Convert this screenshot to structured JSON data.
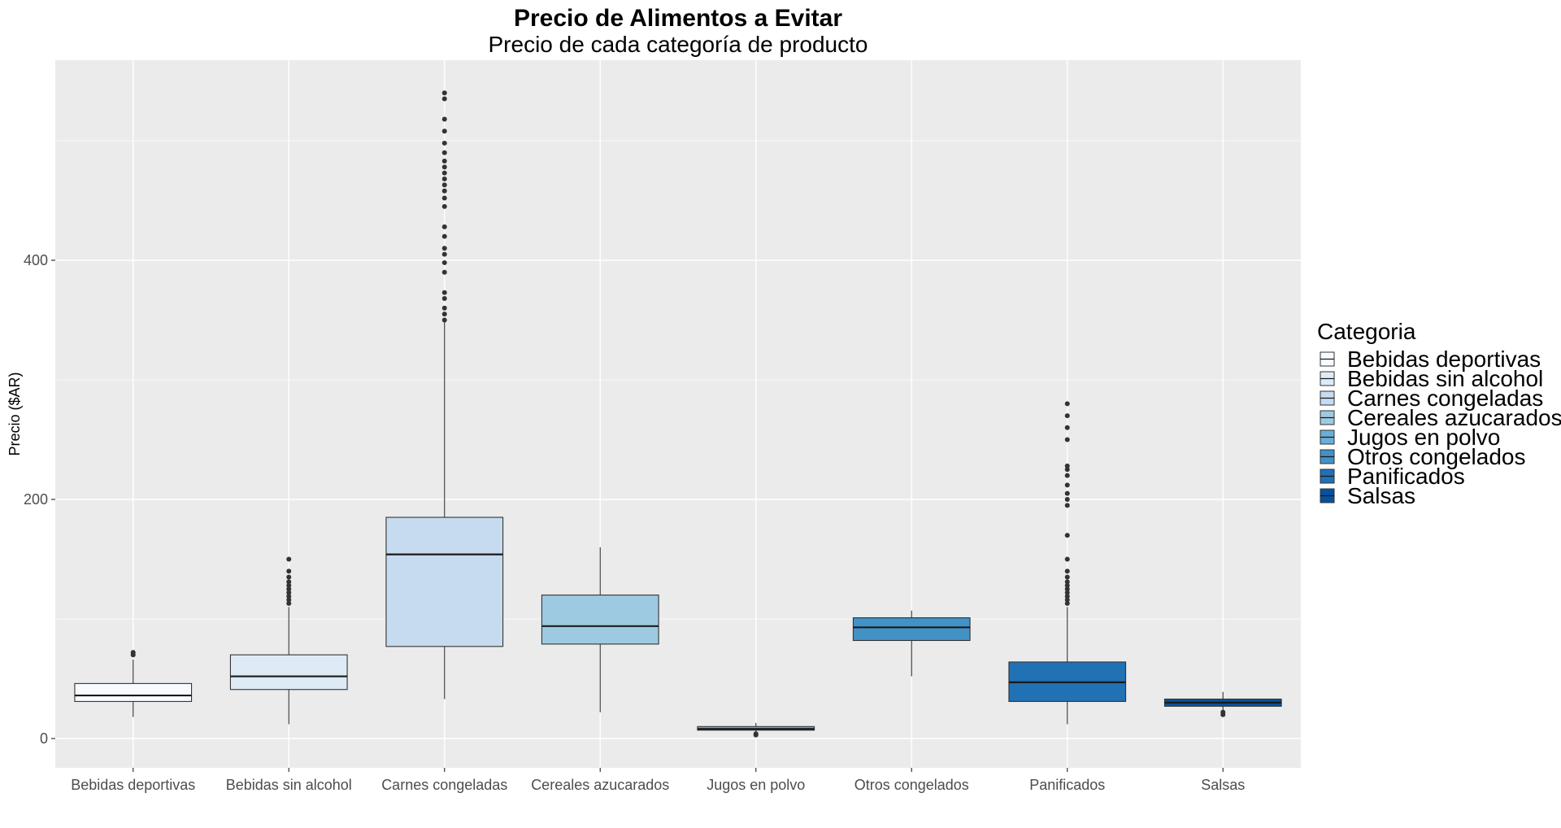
{
  "chart_data": {
    "type": "boxplot",
    "title": "Precio de Alimentos a Evitar",
    "subtitle": "Precio de cada categoría de producto",
    "xlabel": "",
    "ylabel": "Precio ($AR)",
    "ylim": [
      -45,
      570
    ],
    "yticks": [
      0,
      200,
      400
    ],
    "grid": true,
    "legend": {
      "title": "Categoria",
      "position": "right"
    },
    "categories": [
      "Bebidas deportivas",
      "Bebidas sin alcohol",
      "Carnes congeladas",
      "Cereales azucarados",
      "Jugos en polvo",
      "Otros congelados",
      "Panificados",
      "Salsas"
    ],
    "colors": [
      "#F7FBFF",
      "#DEEBF7",
      "#C6DBEF",
      "#9ECAE1",
      "#6BAED6",
      "#4292C6",
      "#2171B5",
      "#08519C"
    ],
    "boxes": [
      {
        "name": "Bebidas deportivas",
        "min": 18,
        "q1": 31,
        "median": 36,
        "q3": 46,
        "max": 66,
        "outliers": [
          70,
          72
        ]
      },
      {
        "name": "Bebidas sin alcohol",
        "min": 12,
        "q1": 41,
        "median": 52,
        "q3": 70,
        "max": 110,
        "outliers": [
          113,
          116,
          119,
          122,
          125,
          128,
          131,
          135,
          140,
          150
        ]
      },
      {
        "name": "Carnes congeladas",
        "min": 33,
        "q1": 77,
        "median": 154,
        "q3": 185,
        "max": 348,
        "outliers": [
          350,
          355,
          360,
          368,
          373,
          390,
          398,
          405,
          410,
          420,
          428,
          445,
          452,
          458,
          463,
          468,
          473,
          478,
          483,
          490,
          498,
          508,
          518,
          535,
          540
        ]
      },
      {
        "name": "Cereales azucarados",
        "min": 22,
        "q1": 79,
        "median": 94,
        "q3": 120,
        "max": 160,
        "outliers": []
      },
      {
        "name": "Jugos en polvo",
        "min": 4,
        "q1": 7,
        "median": 8,
        "q3": 10,
        "max": 13,
        "outliers": [
          3,
          4
        ]
      },
      {
        "name": "Otros congelados",
        "min": 52,
        "q1": 82,
        "median": 93,
        "q3": 101,
        "max": 107,
        "outliers": []
      },
      {
        "name": "Panificados",
        "min": 12,
        "q1": 31,
        "median": 47,
        "q3": 64,
        "max": 110,
        "outliers": [
          113,
          116,
          119,
          122,
          125,
          128,
          131,
          135,
          140,
          150,
          170,
          195,
          200,
          205,
          212,
          220,
          225,
          228,
          250,
          260,
          270,
          280
        ]
      },
      {
        "name": "Salsas",
        "min": 23,
        "q1": 27,
        "median": 30,
        "q3": 33,
        "max": 39,
        "outliers": [
          20,
          22
        ]
      }
    ]
  }
}
